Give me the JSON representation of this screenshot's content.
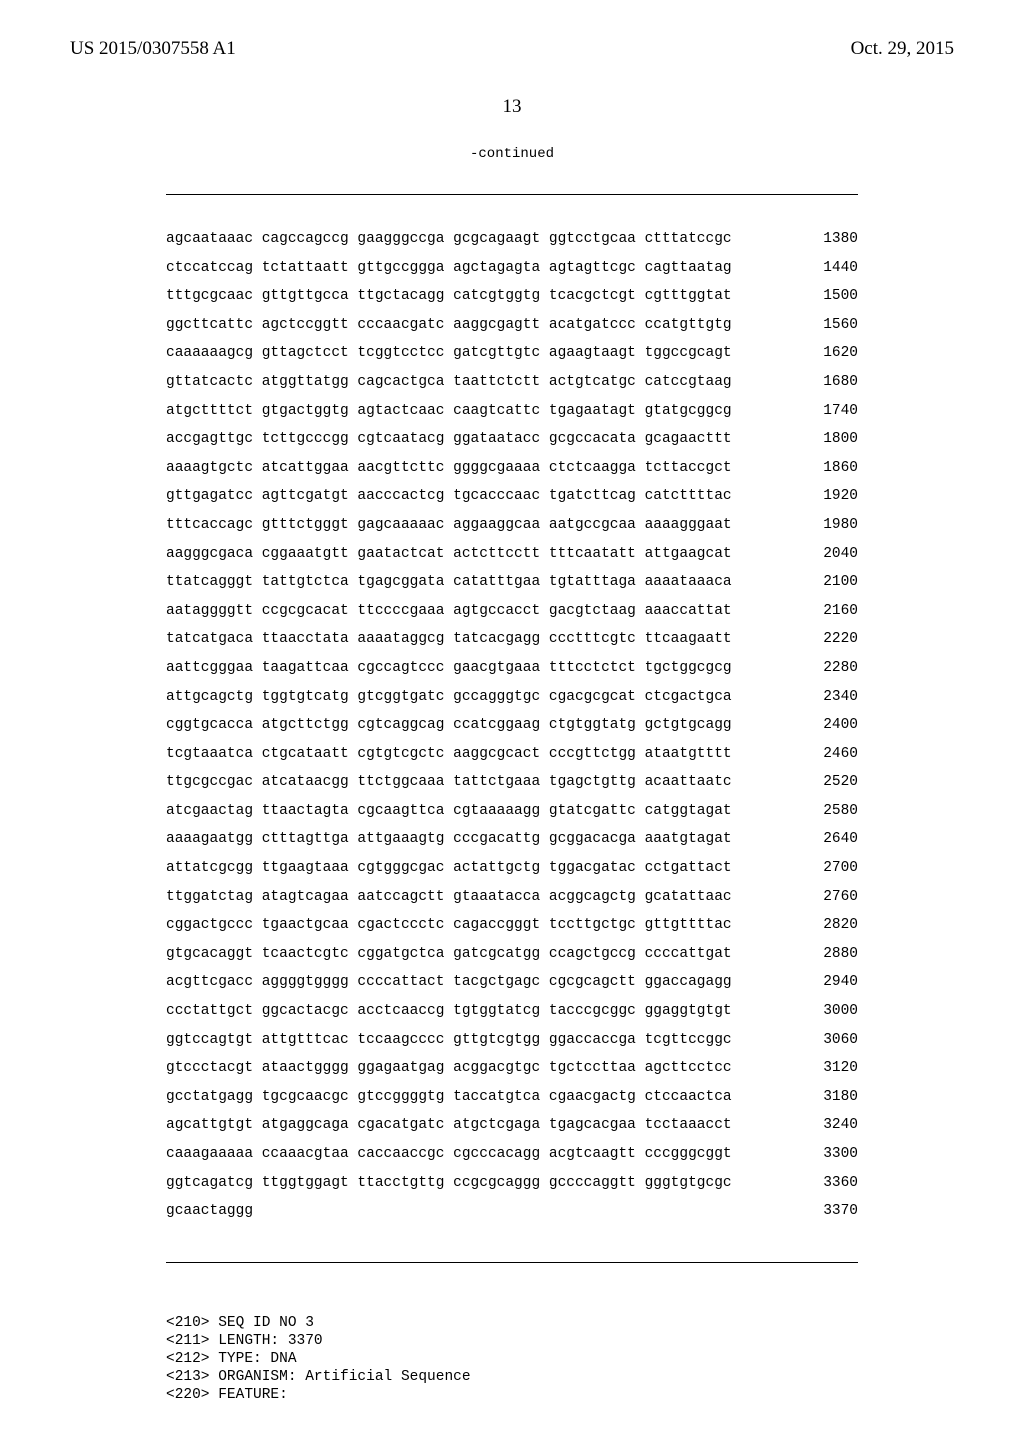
{
  "header": {
    "left": "US 2015/0307558 A1",
    "right": "Oct. 29, 2015"
  },
  "page_number": "13",
  "continued_label": "-continued",
  "sequence_rows": [
    {
      "seq": "agcaataaac cagccagccg gaagggccga gcgcagaagt ggtcctgcaa ctttatccgc",
      "pos": "1380"
    },
    {
      "seq": "ctccatccag tctattaatt gttgccggga agctagagta agtagttcgc cagttaatag",
      "pos": "1440"
    },
    {
      "seq": "tttgcgcaac gttgttgcca ttgctacagg catcgtggtg tcacgctcgt cgtttggtat",
      "pos": "1500"
    },
    {
      "seq": "ggcttcattc agctccggtt cccaacgatc aaggcgagtt acatgatccc ccatgttgtg",
      "pos": "1560"
    },
    {
      "seq": "caaaaaagcg gttagctcct tcggtcctcc gatcgttgtc agaagtaagt tggccgcagt",
      "pos": "1620"
    },
    {
      "seq": "gttatcactc atggttatgg cagcactgca taattctctt actgtcatgc catccgtaag",
      "pos": "1680"
    },
    {
      "seq": "atgcttttct gtgactggtg agtactcaac caagtcattc tgagaatagt gtatgcggcg",
      "pos": "1740"
    },
    {
      "seq": "accgagttgc tcttgcccgg cgtcaatacg ggataatacc gcgccacata gcagaacttt",
      "pos": "1800"
    },
    {
      "seq": "aaaagtgctc atcattggaa aacgttcttc ggggcgaaaa ctctcaagga tcttaccgct",
      "pos": "1860"
    },
    {
      "seq": "gttgagatcc agttcgatgt aacccactcg tgcacccaac tgatcttcag catcttttac",
      "pos": "1920"
    },
    {
      "seq": "tttcaccagc gtttctgggt gagcaaaaac aggaaggcaa aatgccgcaa aaaagggaat",
      "pos": "1980"
    },
    {
      "seq": "aagggcgaca cggaaatgtt gaatactcat actcttcctt tttcaatatt attgaagcat",
      "pos": "2040"
    },
    {
      "seq": "ttatcagggt tattgtctca tgagcggata catatttgaa tgtatttaga aaaataaaca",
      "pos": "2100"
    },
    {
      "seq": "aataggggtt ccgcgcacat ttccccgaaa agtgccacct gacgtctaag aaaccattat",
      "pos": "2160"
    },
    {
      "seq": "tatcatgaca ttaacctata aaaataggcg tatcacgagg ccctttcgtc ttcaagaatt",
      "pos": "2220"
    },
    {
      "seq": "aattcgggaa taagattcaa cgccagtccc gaacgtgaaa tttcctctct tgctggcgcg",
      "pos": "2280"
    },
    {
      "seq": "attgcagctg tggtgtcatg gtcggtgatc gccagggtgc cgacgcgcat ctcgactgca",
      "pos": "2340"
    },
    {
      "seq": "cggtgcacca atgcttctgg cgtcaggcag ccatcggaag ctgtggtatg gctgtgcagg",
      "pos": "2400"
    },
    {
      "seq": "tcgtaaatca ctgcataatt cgtgtcgctc aaggcgcact cccgttctgg ataatgtttt",
      "pos": "2460"
    },
    {
      "seq": "ttgcgccgac atcataacgg ttctggcaaa tattctgaaa tgagctgttg acaattaatc",
      "pos": "2520"
    },
    {
      "seq": "atcgaactag ttaactagta cgcaagttca cgtaaaaagg gtatcgattc catggtagat",
      "pos": "2580"
    },
    {
      "seq": "aaaagaatgg ctttagttga attgaaagtg cccgacattg gcggacacga aaatgtagat",
      "pos": "2640"
    },
    {
      "seq": "attatcgcgg ttgaagtaaa cgtgggcgac actattgctg tggacgatac cctgattact",
      "pos": "2700"
    },
    {
      "seq": "ttggatctag atagtcagaa aatccagctt gtaaatacca acggcagctg gcatattaac",
      "pos": "2760"
    },
    {
      "seq": "cggactgccc tgaactgcaa cgactccctc cagaccgggt tccttgctgc gttgttttac",
      "pos": "2820"
    },
    {
      "seq": "gtgcacaggt tcaactcgtc cggatgctca gatcgcatgg ccagctgccg ccccattgat",
      "pos": "2880"
    },
    {
      "seq": "acgttcgacc aggggtgggg ccccattact tacgctgagc cgcgcagctt ggaccagagg",
      "pos": "2940"
    },
    {
      "seq": "ccctattgct ggcactacgc acctcaaccg tgtggtatcg tacccgcggc ggaggtgtgt",
      "pos": "3000"
    },
    {
      "seq": "ggtccagtgt attgtttcac tccaagcccc gttgtcgtgg ggaccaccga tcgttccggc",
      "pos": "3060"
    },
    {
      "seq": "gtccctacgt ataactgggg ggagaatgag acggacgtgc tgctccttaa agcttcctcc",
      "pos": "3120"
    },
    {
      "seq": "gcctatgagg tgcgcaacgc gtccggggtg taccatgtca cgaacgactg ctccaactca",
      "pos": "3180"
    },
    {
      "seq": "agcattgtgt atgaggcaga cgacatgatc atgctcgaga tgagcacgaa tcctaaacct",
      "pos": "3240"
    },
    {
      "seq": "caaagaaaaa ccaaacgtaa caccaaccgc cgcccacagg acgtcaagtt cccgggcggt",
      "pos": "3300"
    },
    {
      "seq": "ggtcagatcg ttggtggagt ttacctgttg ccgcgcaggg gccccaggtt gggtgtgcgc",
      "pos": "3360"
    },
    {
      "seq": "gcaactaggg",
      "pos": "3370"
    }
  ],
  "meta_lines": [
    "<210> SEQ ID NO 3",
    "<211> LENGTH: 3370",
    "<212> TYPE: DNA",
    "<213> ORGANISM: Artificial Sequence",
    "<220> FEATURE:"
  ]
}
